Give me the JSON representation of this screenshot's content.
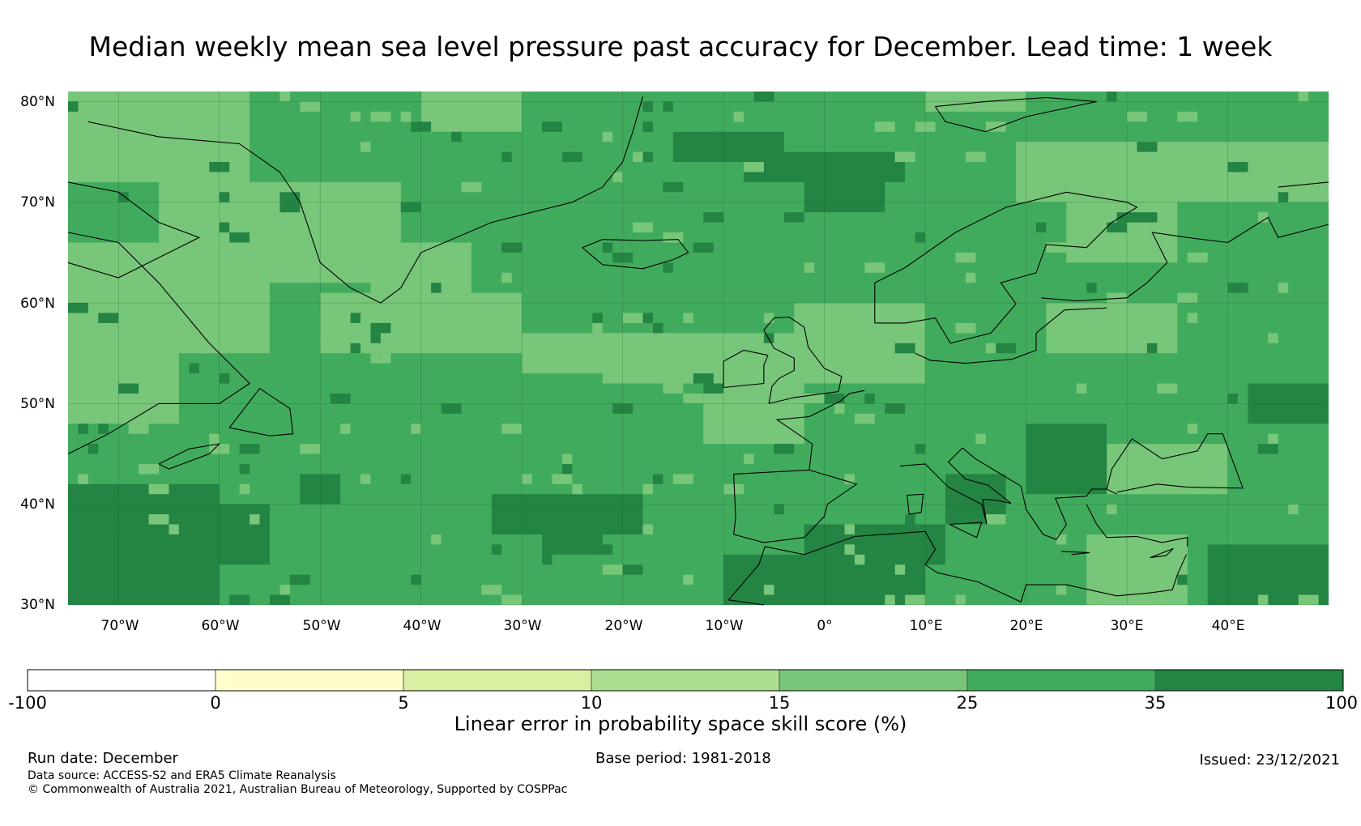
{
  "title": "Median weekly mean sea level pressure past accuracy for December. Lead time: 1 week",
  "map": {
    "lat_labels": [
      "80°N",
      "70°N",
      "60°N",
      "50°N",
      "40°N",
      "30°N"
    ],
    "lon_labels": [
      "70°W",
      "60°W",
      "50°W",
      "40°W",
      "30°W",
      "20°W",
      "10°W",
      "0°",
      "10°E",
      "20°E",
      "30°E",
      "40°E"
    ],
    "extent": {
      "lon_min": -75,
      "lon_max": 50,
      "lat_min": 30,
      "lat_max": 81
    }
  },
  "colorbar": {
    "title": "Linear error in probability space skill score (%)",
    "ticks": [
      "-100",
      "0",
      "5",
      "10",
      "15",
      "25",
      "35",
      "100"
    ],
    "bins": [
      {
        "range": "-100 to 0",
        "color": "#ffffff"
      },
      {
        "range": "0 to 5",
        "color": "#ffffcc"
      },
      {
        "range": "5 to 10",
        "color": "#d9f0a3"
      },
      {
        "range": "10 to 15",
        "color": "#addd8e"
      },
      {
        "range": "15 to 25",
        "color": "#78c679"
      },
      {
        "range": "25 to 35",
        "color": "#41ab5d"
      },
      {
        "range": "35 to 100",
        "color": "#238443"
      }
    ]
  },
  "footer": {
    "run_date": "Run date: December",
    "base_period": "Base period: 1981-2018",
    "issued": "Issued: 23/12/2021",
    "data_source": "Data source: ACCESS-S2 and ERA5 Climate Reanalysis",
    "copyright": "© Commonwealth of Australia 2021, Australian Bureau of Meteorology, Supported by COSPPac"
  }
}
